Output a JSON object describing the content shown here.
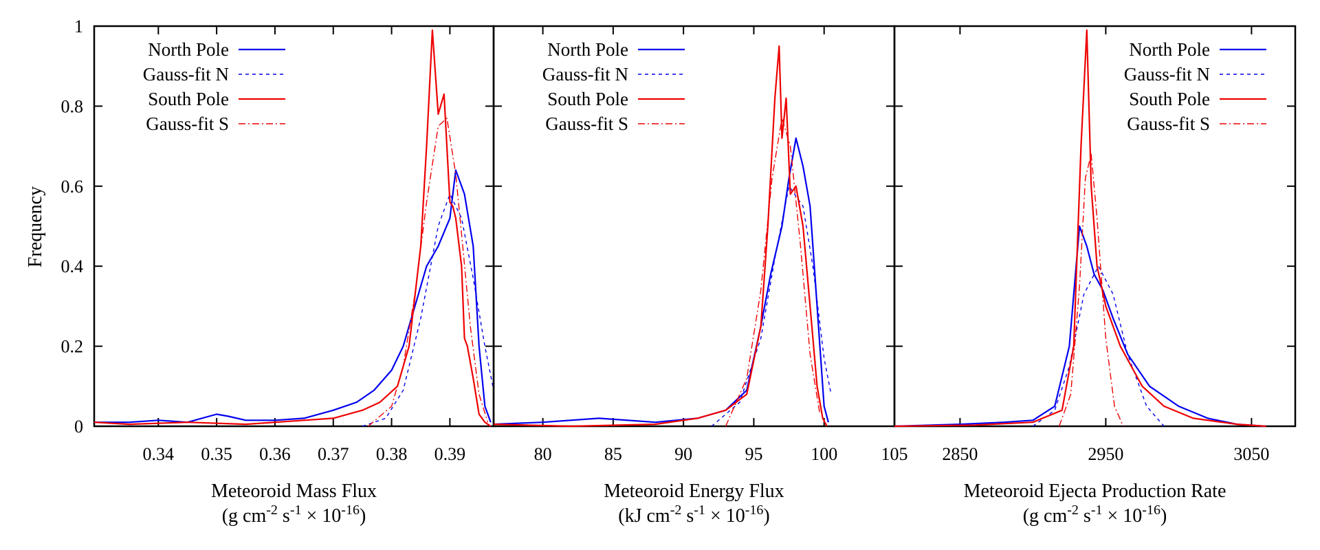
{
  "figure": {
    "ylabel": "Frequency",
    "yticks": [
      "0",
      "0.2",
      "0.4",
      "0.6",
      "0.8",
      "1"
    ],
    "ylim": [
      0,
      1
    ],
    "legend": [
      {
        "label": "North Pole",
        "color": "#0000ee",
        "style": "solid"
      },
      {
        "label": "Gauss-fit N",
        "color": "#0000ee",
        "style": "dashed"
      },
      {
        "label": "South Pole",
        "color": "#ee0000",
        "style": "solid"
      },
      {
        "label": "Gauss-fit S",
        "color": "#ee0000",
        "style": "dashdot"
      }
    ]
  },
  "chart_data": [
    {
      "type": "line",
      "title": "",
      "xlabel": "Meteoroid Mass Flux",
      "xunits": {
        "open": "(g cm",
        "e1": "-2",
        "mid": " s",
        "e2": "-1",
        "times": " × 10",
        "e3": "-16",
        "close": ")"
      },
      "xlim": [
        0.329,
        0.3975
      ],
      "xticks": [
        0.34,
        0.35,
        0.36,
        0.37,
        0.38,
        0.39
      ],
      "xtick_labels": [
        "0.34",
        "0.35",
        "0.36",
        "0.37",
        "0.38",
        "0.39"
      ],
      "ylim": [
        0,
        1
      ],
      "series": [
        {
          "name": "North Pole",
          "x": [
            0.329,
            0.335,
            0.34,
            0.345,
            0.35,
            0.352,
            0.355,
            0.36,
            0.365,
            0.37,
            0.374,
            0.377,
            0.38,
            0.382,
            0.384,
            0.386,
            0.388,
            0.39,
            0.391,
            0.3925,
            0.394,
            0.395,
            0.396,
            0.397
          ],
          "y": [
            0.01,
            0.01,
            0.015,
            0.01,
            0.03,
            0.025,
            0.015,
            0.015,
            0.02,
            0.04,
            0.06,
            0.09,
            0.14,
            0.2,
            0.3,
            0.4,
            0.45,
            0.52,
            0.64,
            0.58,
            0.45,
            0.2,
            0.05,
            0.01
          ]
        },
        {
          "name": "Gauss-fit N",
          "x": [
            0.375,
            0.379,
            0.382,
            0.385,
            0.388,
            0.39,
            0.392,
            0.394,
            0.396,
            0.3975
          ],
          "y": [
            0.0,
            0.02,
            0.09,
            0.27,
            0.5,
            0.58,
            0.52,
            0.37,
            0.2,
            0.09
          ]
        },
        {
          "name": "South Pole",
          "x": [
            0.329,
            0.335,
            0.345,
            0.355,
            0.365,
            0.37,
            0.375,
            0.378,
            0.381,
            0.383,
            0.385,
            0.386,
            0.387,
            0.388,
            0.389,
            0.39,
            0.3905,
            0.391,
            0.392,
            0.3925,
            0.393,
            0.394,
            0.395,
            0.396,
            0.397
          ],
          "y": [
            0.01,
            0.005,
            0.01,
            0.005,
            0.015,
            0.02,
            0.04,
            0.06,
            0.1,
            0.2,
            0.45,
            0.7,
            0.99,
            0.78,
            0.83,
            0.56,
            0.55,
            0.52,
            0.4,
            0.22,
            0.2,
            0.12,
            0.03,
            0.01,
            0.0
          ]
        },
        {
          "name": "Gauss-fit S",
          "x": [
            0.376,
            0.38,
            0.382,
            0.384,
            0.386,
            0.388,
            0.3895,
            0.391,
            0.392,
            0.3935,
            0.395,
            0.3965
          ],
          "y": [
            0.0,
            0.05,
            0.15,
            0.33,
            0.56,
            0.75,
            0.77,
            0.63,
            0.48,
            0.25,
            0.08,
            0.01
          ]
        }
      ]
    },
    {
      "type": "line",
      "title": "",
      "xlabel": "Meteoroid Energy Flux",
      "xunits": {
        "open": "(kJ cm",
        "e1": "-2",
        "mid": " s",
        "e2": "-1",
        "times": " × 10",
        "e3": "-16",
        "close": ")"
      },
      "xlim": [
        76.5,
        105
      ],
      "xticks": [
        80,
        85,
        90,
        95,
        100,
        105
      ],
      "xtick_labels": [
        "80",
        "85",
        "90",
        "95",
        "100",
        "105"
      ],
      "ylim": [
        0,
        1
      ],
      "series": [
        {
          "name": "North Pole",
          "x": [
            76.5,
            80,
            84,
            88,
            91,
            93,
            94.5,
            95.5,
            96.2,
            97,
            97.5,
            98,
            98.5,
            99,
            99.5,
            100,
            100.3
          ],
          "y": [
            0.005,
            0.01,
            0.02,
            0.01,
            0.02,
            0.04,
            0.09,
            0.25,
            0.38,
            0.5,
            0.62,
            0.72,
            0.65,
            0.55,
            0.3,
            0.05,
            0.01
          ]
        },
        {
          "name": "Gauss-fit N",
          "x": [
            92,
            94,
            95.5,
            96.5,
            97.5,
            98.5,
            99.2,
            100,
            100.5
          ],
          "y": [
            0.0,
            0.06,
            0.22,
            0.42,
            0.6,
            0.55,
            0.4,
            0.17,
            0.08
          ]
        },
        {
          "name": "South Pole",
          "x": [
            76.5,
            82,
            88,
            91,
            93,
            94.5,
            95.5,
            96,
            96.5,
            96.8,
            97,
            97.3,
            97.6,
            98,
            98.5,
            99,
            99.5,
            99.9,
            100.2
          ],
          "y": [
            0.005,
            0.0,
            0.005,
            0.02,
            0.04,
            0.08,
            0.25,
            0.5,
            0.82,
            0.95,
            0.72,
            0.82,
            0.58,
            0.6,
            0.5,
            0.3,
            0.1,
            0.02,
            0.0
          ]
        },
        {
          "name": "Gauss-fit S",
          "x": [
            93,
            94.5,
            95.5,
            96.3,
            97,
            97.6,
            98.3,
            99,
            99.7
          ],
          "y": [
            0.0,
            0.12,
            0.34,
            0.62,
            0.77,
            0.7,
            0.46,
            0.18,
            0.03
          ]
        }
      ]
    },
    {
      "type": "line",
      "title": "",
      "xlabel": "Meteoroid Ejecta Production Rate",
      "xunits": {
        "open": "(g cm",
        "e1": "-2",
        "mid": " s",
        "e2": "-1",
        "times": " × 10",
        "e3": "-16",
        "close": ")"
      },
      "xlim": [
        2805,
        3080
      ],
      "xticks": [
        2850,
        2950,
        3050
      ],
      "xtick_labels": [
        "2850",
        "2950",
        "3050"
      ],
      "ylim": [
        0,
        1
      ],
      "series": [
        {
          "name": "North Pole",
          "x": [
            2805,
            2850,
            2880,
            2900,
            2915,
            2925,
            2932,
            2937,
            2942,
            2948,
            2955,
            2965,
            2980,
            3000,
            3020,
            3040,
            3060
          ],
          "y": [
            0.0,
            0.005,
            0.01,
            0.015,
            0.05,
            0.2,
            0.5,
            0.45,
            0.38,
            0.34,
            0.27,
            0.18,
            0.1,
            0.05,
            0.02,
            0.005,
            0.0
          ]
        },
        {
          "name": "Gauss-fit N",
          "x": [
            2900,
            2915,
            2925,
            2935,
            2945,
            2955,
            2965,
            2978,
            2990
          ],
          "y": [
            0.0,
            0.04,
            0.15,
            0.33,
            0.4,
            0.33,
            0.18,
            0.05,
            0.0
          ]
        },
        {
          "name": "South Pole",
          "x": [
            2805,
            2860,
            2900,
            2920,
            2928,
            2933,
            2937,
            2940,
            2944,
            2950,
            2960,
            2975,
            2990,
            3010,
            3040,
            3060
          ],
          "y": [
            0.0,
            0.003,
            0.01,
            0.04,
            0.2,
            0.7,
            0.99,
            0.6,
            0.4,
            0.3,
            0.2,
            0.1,
            0.05,
            0.02,
            0.005,
            0.0
          ]
        },
        {
          "name": "Gauss-fit S",
          "x": [
            2918,
            2926,
            2932,
            2936,
            2940,
            2944,
            2950,
            2956,
            2962
          ],
          "y": [
            0.0,
            0.08,
            0.35,
            0.62,
            0.68,
            0.52,
            0.22,
            0.05,
            0.0
          ]
        }
      ]
    }
  ]
}
